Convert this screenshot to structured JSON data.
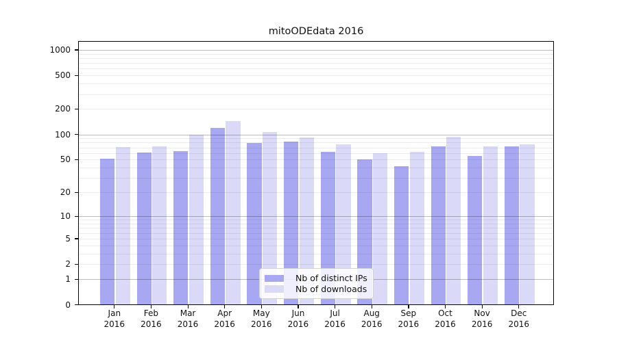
{
  "title": "mitoODEdata 2016",
  "chart_data": {
    "type": "bar",
    "title": "mitoODEdata 2016",
    "categories": [
      "Jan 2016",
      "Feb 2016",
      "Mar 2016",
      "Apr 2016",
      "May 2016",
      "Jun 2016",
      "Jul 2016",
      "Aug 2016",
      "Sep 2016",
      "Oct 2016",
      "Nov 2016",
      "Dec 2016"
    ],
    "series": [
      {
        "name": "Nb of distinct IPs",
        "color": "#a8a8f2",
        "values": [
          51,
          60,
          63,
          119,
          78,
          82,
          62,
          50,
          41,
          72,
          55,
          72
        ]
      },
      {
        "name": "Nb of downloads",
        "color": "#dadaf8",
        "values": [
          70,
          72,
          99,
          143,
          106,
          92,
          76,
          59,
          62,
          93,
          72,
          76
        ]
      }
    ],
    "xlabel": "",
    "ylabel": "",
    "yscale": "log10(value+1)",
    "ylim": [
      0,
      1280
    ],
    "y_ticks": [
      0,
      1,
      2,
      5,
      10,
      20,
      50,
      100,
      200,
      500,
      1000
    ],
    "y_minor_gridlines": [
      2,
      3,
      4,
      5,
      6,
      7,
      8,
      9,
      20,
      30,
      40,
      50,
      60,
      70,
      80,
      90,
      200,
      300,
      400,
      500,
      600,
      700,
      800,
      900
    ],
    "y_major_gridlines": [
      1,
      10,
      100,
      1000
    ],
    "grid": true,
    "legend_position": "lower center",
    "legend_entries": [
      "Nb of distinct IPs",
      "Nb of downloads"
    ]
  }
}
